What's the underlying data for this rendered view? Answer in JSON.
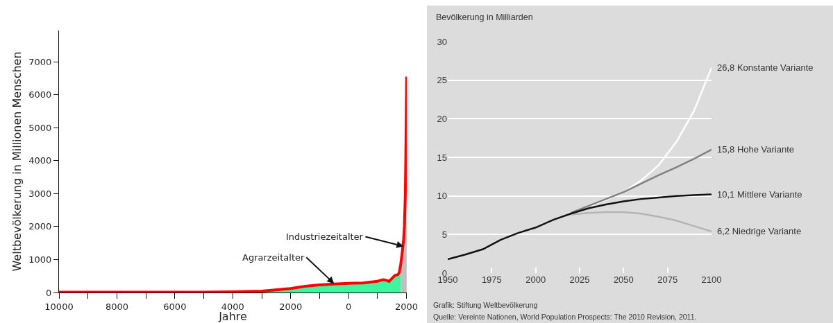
{
  "chart_data": [
    {
      "type": "line",
      "xlabel": "Jahre",
      "ylabel": "Weltbevölkerung in Millionen Menschen",
      "xlim": [
        -10000,
        2010
      ],
      "ylim": [
        0,
        7950
      ],
      "xticks": [
        {
          "value": -10000,
          "label": "10000"
        },
        {
          "value": -9000,
          "label": null
        },
        {
          "value": -8000,
          "label": "8000"
        },
        {
          "value": -7000,
          "label": null
        },
        {
          "value": -6000,
          "label": "6000"
        },
        {
          "value": -5000,
          "label": null
        },
        {
          "value": -4000,
          "label": "4000"
        },
        {
          "value": -3000,
          "label": null
        },
        {
          "value": -2000,
          "label": "2000"
        },
        {
          "value": -1000,
          "label": null
        },
        0,
        {
          "value": 1000,
          "label": null
        },
        2000
      ],
      "yticks": [
        0,
        1000,
        2000,
        3000,
        4000,
        5000,
        6000,
        7000
      ],
      "grid": false,
      "legend": false,
      "series": [
        {
          "type": "area",
          "color": "#40f5a0",
          "x": [
            -10000,
            -8000,
            -6000,
            -5000,
            -4000,
            -3000,
            -2000,
            -1500,
            -1000,
            -500,
            0,
            500,
            1000,
            1100,
            1200,
            1300,
            1400,
            1500,
            1600,
            1700,
            1750,
            1800
          ],
          "values": [
            10,
            10,
            10,
            10,
            20,
            40,
            120,
            190,
            230,
            260,
            280,
            290,
            340,
            370,
            390,
            370,
            340,
            430,
            520,
            540,
            600,
            850
          ]
        },
        {
          "type": "area",
          "color": "#c0c0c0",
          "x": [
            1800,
            1850,
            1900,
            1927,
            1960,
            1975,
            1987,
            1999,
            2006
          ],
          "values": [
            850,
            1200,
            1600,
            2000,
            3000,
            4000,
            5000,
            6000,
            6550
          ]
        },
        {
          "type": "line",
          "color": "#ff0000",
          "x": [
            -10000,
            -8000,
            -6000,
            -5000,
            -4000,
            -3000,
            -2000,
            -1500,
            -1000,
            -500,
            0,
            500,
            1000,
            1100,
            1200,
            1300,
            1400,
            1500,
            1600,
            1700,
            1750,
            1800,
            1850,
            1900,
            1927,
            1960,
            1975,
            1987,
            1999,
            2006
          ],
          "values": [
            10,
            10,
            10,
            10,
            20,
            40,
            120,
            190,
            230,
            260,
            280,
            290,
            340,
            370,
            390,
            370,
            340,
            430,
            520,
            540,
            600,
            850,
            1200,
            1600,
            2000,
            3000,
            4000,
            5000,
            6000,
            6550
          ]
        }
      ],
      "annotations": [
        {
          "text": "Agrarzeitalter",
          "x": -500,
          "y": 270
        },
        {
          "text": "Industriezeitalter",
          "x": 1900,
          "y": 1400
        }
      ]
    },
    {
      "type": "line",
      "ylabel": "Bevölkerung in Milliarden",
      "xlim": [
        1950,
        2100
      ],
      "ylim": [
        0,
        30
      ],
      "xticks": [
        1950,
        1975,
        2000,
        2025,
        2050,
        2075,
        2100
      ],
      "yticks": [
        0,
        5,
        10,
        15,
        20,
        25,
        30
      ],
      "grid": "y",
      "legend": false,
      "series": [
        {
          "name": "26,8 Konstante Variante",
          "color": "#ffffff",
          "x": [
            2020,
            2030,
            2040,
            2050,
            2060,
            2070,
            2080,
            2090,
            2100
          ],
          "values": [
            7.7,
            8.6,
            9.5,
            10.5,
            12.0,
            14.0,
            17.0,
            21.0,
            26.6
          ]
        },
        {
          "name": "15,8 Hohe Variante",
          "color": "#808080",
          "x": [
            2020,
            2030,
            2040,
            2050,
            2060,
            2070,
            2080,
            2090,
            2100
          ],
          "values": [
            7.8,
            8.7,
            9.6,
            10.5,
            11.6,
            12.7,
            13.7,
            14.8,
            16.0
          ]
        },
        {
          "name": "6,2 Niedrige Variante",
          "color": "#b4b4b4",
          "x": [
            2020,
            2030,
            2040,
            2050,
            2060,
            2070,
            2080,
            2090,
            2100
          ],
          "values": [
            7.6,
            7.8,
            7.9,
            7.9,
            7.7,
            7.3,
            6.8,
            6.1,
            5.4
          ]
        },
        {
          "name": "10,1 Mittlere Variante",
          "color": "#111111",
          "x": [
            1950,
            1960,
            1970,
            1975,
            1980,
            1990,
            2000,
            2010,
            2020,
            2030,
            2040,
            2050,
            2060,
            2070,
            2080,
            2090,
            2100
          ],
          "values": [
            1.8,
            2.4,
            3.1,
            3.7,
            4.3,
            5.2,
            5.9,
            6.9,
            7.7,
            8.4,
            8.9,
            9.3,
            9.6,
            9.8,
            10.0,
            10.1,
            10.2
          ]
        }
      ],
      "annotations": [
        "Grafik: Stiftung Weltbevölkerung",
        "Quelle: Vereinte Nationen, World Population Prospects: The 2010 Revision, 2011."
      ]
    }
  ]
}
